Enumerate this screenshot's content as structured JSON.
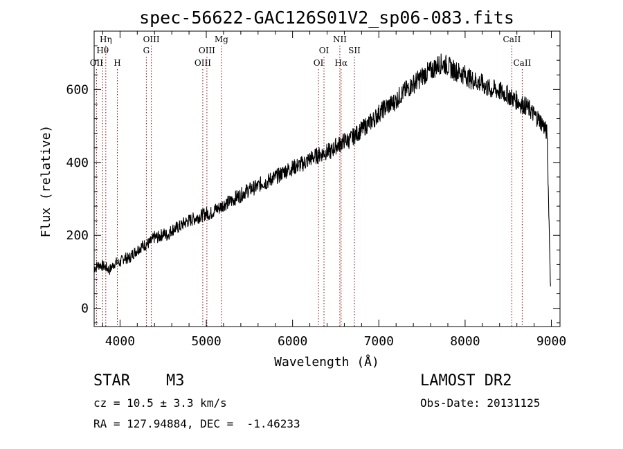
{
  "chart_data": {
    "type": "line",
    "title": "spec-56622-GAC126S01V2_sp06-083.fits",
    "xlabel": "Wavelength (Å)",
    "ylabel": "Flux (relative)",
    "xlim": [
      3700,
      9100
    ],
    "ylim": [
      -50,
      760
    ],
    "xticks": [
      4000,
      5000,
      6000,
      7000,
      8000,
      9000
    ],
    "yticks": [
      0,
      200,
      400,
      600
    ],
    "grid": false,
    "line_color": "#000000",
    "marker_color": "#8b0000",
    "series": [
      {
        "x": [
          3700,
          3760,
          3820,
          3880,
          3940,
          4000,
          4050,
          4100,
          4150,
          4200,
          4250,
          4300,
          4350,
          4400,
          4450,
          4500,
          4550,
          4600,
          4650,
          4700,
          4750,
          4800,
          4850,
          4900,
          4950,
          5000,
          5050,
          5100,
          5150,
          5200,
          5250,
          5300,
          5350,
          5400,
          5450,
          5500,
          5550,
          5600,
          5650,
          5700,
          5750,
          5800,
          5850,
          5900,
          5950,
          6000,
          6050,
          6100,
          6150,
          6200,
          6250,
          6300,
          6350,
          6400,
          6450,
          6500,
          6550,
          6600,
          6650,
          6700,
          6750,
          6800,
          6850,
          6900,
          6950,
          7000,
          7050,
          7100,
          7150,
          7200,
          7250,
          7300,
          7350,
          7400,
          7450,
          7500,
          7550,
          7600,
          7650,
          7700,
          7750,
          7800,
          7850,
          7900,
          7950,
          8000,
          8050,
          8100,
          8150,
          8200,
          8250,
          8300,
          8350,
          8400,
          8450,
          8500,
          8550,
          8600,
          8650,
          8700,
          8750,
          8800,
          8850,
          8900,
          8950,
          8990
        ],
        "y": [
          110,
          120,
          115,
          105,
          125,
          125,
          140,
          135,
          150,
          160,
          170,
          175,
          180,
          195,
          195,
          205,
          200,
          215,
          220,
          225,
          235,
          240,
          245,
          250,
          255,
          260,
          260,
          270,
          275,
          285,
          290,
          295,
          305,
          310,
          320,
          325,
          330,
          335,
          345,
          345,
          355,
          360,
          365,
          375,
          380,
          385,
          390,
          395,
          400,
          410,
          415,
          420,
          425,
          430,
          430,
          445,
          450,
          460,
          460,
          470,
          480,
          490,
          500,
          510,
          520,
          535,
          545,
          555,
          560,
          570,
          585,
          595,
          605,
          615,
          625,
          635,
          645,
          650,
          660,
          670,
          670,
          665,
          655,
          650,
          645,
          640,
          630,
          625,
          620,
          615,
          605,
          600,
          600,
          595,
          590,
          585,
          575,
          570,
          560,
          555,
          545,
          530,
          520,
          505,
          480,
          60
        ]
      }
    ],
    "lines": [
      {
        "name": "OII",
        "x": 3727,
        "row": 3
      },
      {
        "name": "Hθ",
        "x": 3798,
        "row": 2
      },
      {
        "name": "Hη",
        "x": 3835,
        "row": 1
      },
      {
        "name": "H",
        "x": 3969,
        "row": 3
      },
      {
        "name": "G",
        "x": 4305,
        "row": 2
      },
      {
        "name": "OIII",
        "x": 4363,
        "row": 1
      },
      {
        "name": "OIII",
        "x": 4959,
        "row": 3
      },
      {
        "name": "OIII",
        "x": 5007,
        "row": 2
      },
      {
        "name": "Mg",
        "x": 5175,
        "row": 1
      },
      {
        "name": "OI",
        "x": 6300,
        "row": 3
      },
      {
        "name": "OI",
        "x": 6364,
        "row": 2
      },
      {
        "name": "NII",
        "x": 6548,
        "row": 1
      },
      {
        "name": "Hα",
        "x": 6563,
        "row": 3
      },
      {
        "name": "SII",
        "x": 6717,
        "row": 2
      },
      {
        "name": "CaII",
        "x": 8542,
        "row": 1
      },
      {
        "name": "CaII",
        "x": 8662,
        "row": 3
      }
    ]
  },
  "info": {
    "class": "STAR",
    "subclass": "M3",
    "survey": "LAMOST DR2",
    "cz": "cz = 10.5 ± 3.3 km/s",
    "obs_date": "Obs-Date: 20131125",
    "coords": "RA = 127.94884, DEC =  -1.46233"
  }
}
